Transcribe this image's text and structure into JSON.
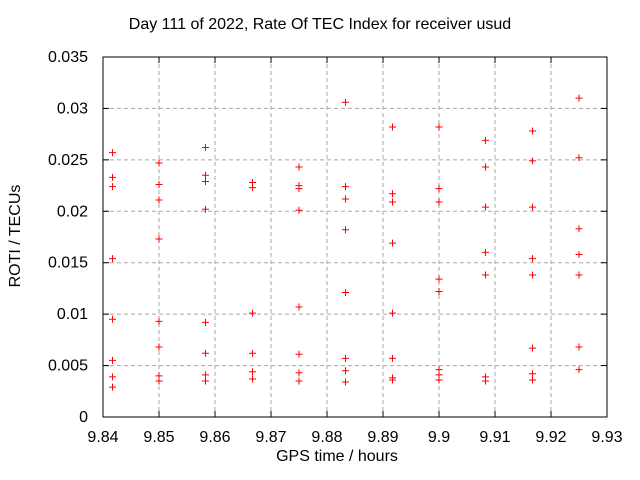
{
  "chart_data": {
    "type": "scatter",
    "title": "Day 111 of 2022, Rate Of TEC Index for receiver usud",
    "xlabel": "GPS time / hours",
    "ylabel": "ROTI / TECUs",
    "xlim": [
      9.84,
      9.93
    ],
    "ylim": [
      0,
      0.035
    ],
    "xticks": [
      9.84,
      9.85,
      9.86,
      9.87,
      9.88,
      9.89,
      9.9,
      9.91,
      9.92,
      9.93
    ],
    "xtick_labels": [
      "9.84",
      "9.85",
      "9.86",
      "9.87",
      "9.88",
      "9.89",
      "9.9",
      "9.91",
      "9.92",
      "9.93"
    ],
    "yticks": [
      0,
      0.005,
      0.01,
      0.015,
      0.02,
      0.025,
      0.03,
      0.035
    ],
    "ytick_labels": [
      "0",
      "0.005",
      "0.01",
      "0.015",
      "0.02",
      "0.025",
      "0.03",
      "0.035"
    ],
    "grid": true,
    "legend": "none",
    "marker": "plus",
    "marker_color": "#ff0000",
    "marker_size": 7,
    "background_color": "#ffffff",
    "series": [
      {
        "name": "ROTI",
        "points": [
          [
            9.8417,
            0.0257
          ],
          [
            9.8417,
            0.0233
          ],
          [
            9.8417,
            0.0224
          ],
          [
            9.8417,
            0.0154
          ],
          [
            9.8417,
            0.0095
          ],
          [
            9.8417,
            0.0055
          ],
          [
            9.8417,
            0.0039
          ],
          [
            9.8417,
            0.0029
          ],
          [
            9.85,
            0.0247
          ],
          [
            9.85,
            0.0226
          ],
          [
            9.85,
            0.0211
          ],
          [
            9.85,
            0.0173
          ],
          [
            9.85,
            0.0093
          ],
          [
            9.85,
            0.0068
          ],
          [
            9.85,
            0.004
          ],
          [
            9.85,
            0.0035
          ],
          [
            9.8583,
            0.0262
          ],
          [
            9.8583,
            0.0235
          ],
          [
            9.8583,
            0.0229
          ],
          [
            9.8583,
            0.0202
          ],
          [
            9.8583,
            0.0092
          ],
          [
            9.8583,
            0.0062
          ],
          [
            9.8583,
            0.0041
          ],
          [
            9.8583,
            0.0035
          ],
          [
            9.8667,
            0.0228
          ],
          [
            9.8667,
            0.0223
          ],
          [
            9.8667,
            0.0101
          ],
          [
            9.8667,
            0.0062
          ],
          [
            9.8667,
            0.0044
          ],
          [
            9.8667,
            0.0037
          ],
          [
            9.875,
            0.0243
          ],
          [
            9.875,
            0.0225
          ],
          [
            9.875,
            0.0222
          ],
          [
            9.875,
            0.0201
          ],
          [
            9.875,
            0.0107
          ],
          [
            9.875,
            0.0061
          ],
          [
            9.875,
            0.0043
          ],
          [
            9.875,
            0.0035
          ],
          [
            9.8833,
            0.0306
          ],
          [
            9.8833,
            0.0224
          ],
          [
            9.8833,
            0.0212
          ],
          [
            9.8833,
            0.0182
          ],
          [
            9.8833,
            0.0121
          ],
          [
            9.8833,
            0.0057
          ],
          [
            9.8833,
            0.0045
          ],
          [
            9.8833,
            0.0034
          ],
          [
            9.8917,
            0.0282
          ],
          [
            9.8917,
            0.0217
          ],
          [
            9.8917,
            0.0209
          ],
          [
            9.8917,
            0.0169
          ],
          [
            9.8917,
            0.0101
          ],
          [
            9.8917,
            0.0057
          ],
          [
            9.8917,
            0.0038
          ],
          [
            9.8917,
            0.0036
          ],
          [
            9.9,
            0.0282
          ],
          [
            9.9,
            0.0222
          ],
          [
            9.9,
            0.0209
          ],
          [
            9.9,
            0.0134
          ],
          [
            9.9,
            0.0122
          ],
          [
            9.9,
            0.0046
          ],
          [
            9.9,
            0.0041
          ],
          [
            9.9,
            0.0036
          ],
          [
            9.9083,
            0.0269
          ],
          [
            9.9083,
            0.0243
          ],
          [
            9.9083,
            0.0204
          ],
          [
            9.9083,
            0.016
          ],
          [
            9.9083,
            0.0138
          ],
          [
            9.9083,
            0.0039
          ],
          [
            9.9083,
            0.0035
          ],
          [
            9.9167,
            0.0278
          ],
          [
            9.9167,
            0.0249
          ],
          [
            9.9167,
            0.0204
          ],
          [
            9.9167,
            0.0154
          ],
          [
            9.9167,
            0.0138
          ],
          [
            9.9167,
            0.0067
          ],
          [
            9.9167,
            0.0042
          ],
          [
            9.9167,
            0.0036
          ],
          [
            9.925,
            0.031
          ],
          [
            9.925,
            0.0252
          ],
          [
            9.925,
            0.0183
          ],
          [
            9.925,
            0.0158
          ],
          [
            9.925,
            0.0138
          ],
          [
            9.925,
            0.0068
          ],
          [
            9.925,
            0.0046
          ]
        ]
      }
    ]
  }
}
